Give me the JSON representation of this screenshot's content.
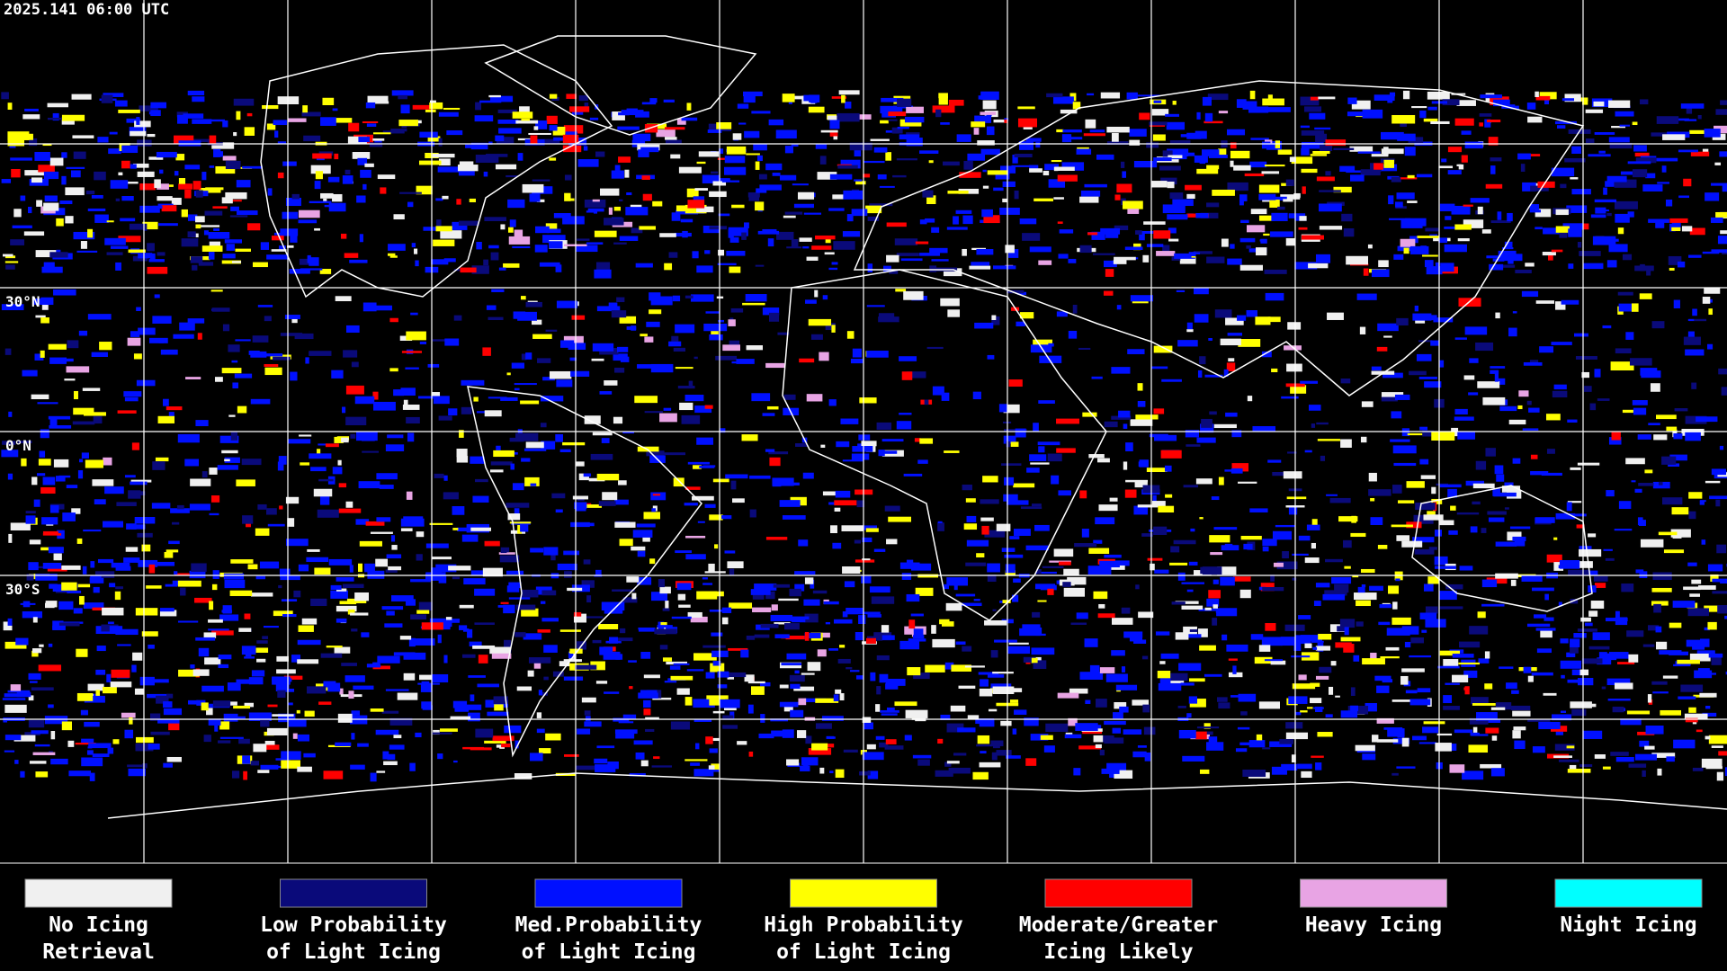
{
  "header": {
    "timestamp": "2025.141 06:00 UTC"
  },
  "map": {
    "lat_labels": [
      "30°N",
      "0°N",
      "30°S"
    ]
  },
  "legend": [
    {
      "color": "#f0f0f0",
      "label_lines": [
        "No Icing",
        "Retrieval"
      ]
    },
    {
      "color": "#0a0a7a",
      "label_lines": [
        "Low Probability",
        "of Light Icing"
      ]
    },
    {
      "color": "#0010ff",
      "label_lines": [
        "Med.Probability",
        "of Light Icing"
      ]
    },
    {
      "color": "#ffff00",
      "label_lines": [
        "High Probability",
        "of Light Icing"
      ]
    },
    {
      "color": "#ff0000",
      "label_lines": [
        "Moderate/Greater",
        "Icing Likely"
      ]
    },
    {
      "color": "#e8a4e4",
      "label_lines": [
        "Heavy Icing"
      ]
    },
    {
      "color": "#00ffff",
      "label_lines": [
        "Night Icing"
      ]
    }
  ]
}
